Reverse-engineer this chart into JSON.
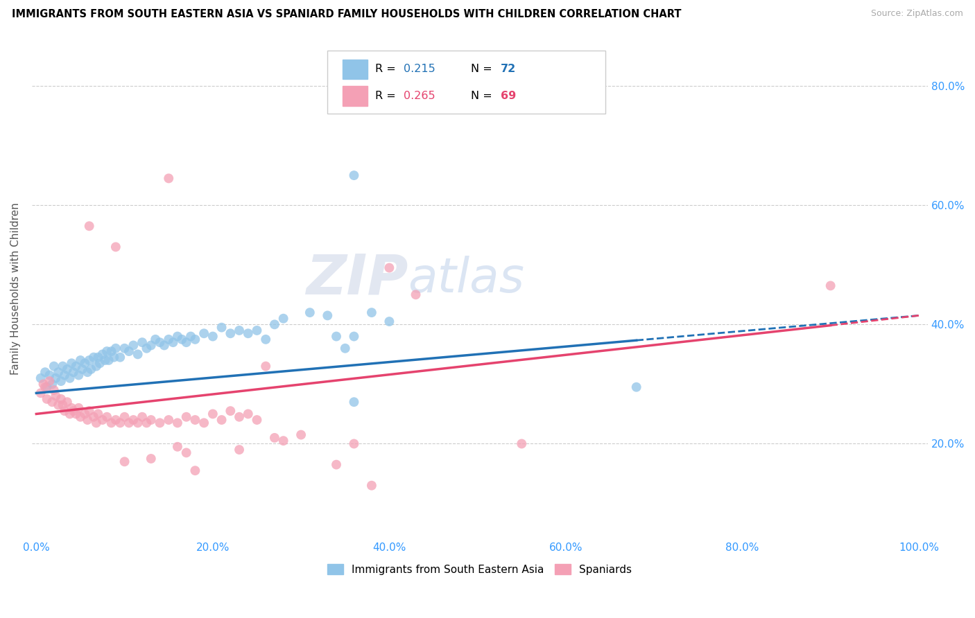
{
  "title": "IMMIGRANTS FROM SOUTH EASTERN ASIA VS SPANIARD FAMILY HOUSEHOLDS WITH CHILDREN CORRELATION CHART",
  "source": "Source: ZipAtlas.com",
  "ylabel": "Family Households with Children",
  "legend_label1": "Immigrants from South Eastern Asia",
  "legend_label2": "Spaniards",
  "r1": 0.215,
  "n1": 72,
  "r2": 0.265,
  "n2": 69,
  "color_blue": "#90c4e8",
  "color_pink": "#f4a0b5",
  "color_blue_line": "#2171b5",
  "color_pink_line": "#e5436e",
  "watermark_zip": "ZIP",
  "watermark_atlas": "atlas",
  "blue_x": [
    0.005,
    0.01,
    0.012,
    0.015,
    0.018,
    0.02,
    0.022,
    0.025,
    0.028,
    0.03,
    0.032,
    0.035,
    0.038,
    0.04,
    0.042,
    0.045,
    0.048,
    0.05,
    0.052,
    0.055,
    0.058,
    0.06,
    0.062,
    0.065,
    0.068,
    0.07,
    0.072,
    0.075,
    0.078,
    0.08,
    0.082,
    0.085,
    0.088,
    0.09,
    0.095,
    0.1,
    0.105,
    0.11,
    0.115,
    0.12,
    0.125,
    0.13,
    0.135,
    0.14,
    0.145,
    0.15,
    0.155,
    0.16,
    0.165,
    0.17,
    0.175,
    0.18,
    0.19,
    0.2,
    0.21,
    0.22,
    0.23,
    0.24,
    0.25,
    0.26,
    0.27,
    0.28,
    0.31,
    0.33,
    0.34,
    0.35,
    0.36,
    0.36,
    0.68,
    0.36,
    0.38,
    0.4
  ],
  "blue_y": [
    0.31,
    0.32,
    0.295,
    0.315,
    0.3,
    0.33,
    0.31,
    0.32,
    0.305,
    0.33,
    0.315,
    0.325,
    0.31,
    0.335,
    0.32,
    0.33,
    0.315,
    0.34,
    0.325,
    0.335,
    0.32,
    0.34,
    0.325,
    0.345,
    0.33,
    0.345,
    0.335,
    0.35,
    0.34,
    0.355,
    0.34,
    0.355,
    0.345,
    0.36,
    0.345,
    0.36,
    0.355,
    0.365,
    0.35,
    0.37,
    0.36,
    0.365,
    0.375,
    0.37,
    0.365,
    0.375,
    0.37,
    0.38,
    0.375,
    0.37,
    0.38,
    0.375,
    0.385,
    0.38,
    0.395,
    0.385,
    0.39,
    0.385,
    0.39,
    0.375,
    0.4,
    0.41,
    0.42,
    0.415,
    0.38,
    0.36,
    0.38,
    0.65,
    0.295,
    0.27,
    0.42,
    0.405
  ],
  "pink_x": [
    0.005,
    0.008,
    0.01,
    0.012,
    0.015,
    0.018,
    0.02,
    0.022,
    0.025,
    0.028,
    0.03,
    0.032,
    0.035,
    0.038,
    0.04,
    0.042,
    0.045,
    0.048,
    0.05,
    0.055,
    0.058,
    0.06,
    0.065,
    0.068,
    0.07,
    0.075,
    0.08,
    0.085,
    0.09,
    0.095,
    0.1,
    0.105,
    0.11,
    0.115,
    0.12,
    0.125,
    0.13,
    0.14,
    0.15,
    0.16,
    0.17,
    0.18,
    0.19,
    0.2,
    0.21,
    0.22,
    0.23,
    0.24,
    0.25,
    0.26,
    0.16,
    0.17,
    0.1,
    0.13,
    0.23,
    0.18,
    0.27,
    0.28,
    0.3,
    0.34,
    0.36,
    0.38,
    0.55,
    0.43,
    0.9,
    0.06,
    0.09,
    0.15,
    0.4
  ],
  "pink_y": [
    0.285,
    0.3,
    0.295,
    0.275,
    0.305,
    0.27,
    0.29,
    0.28,
    0.265,
    0.275,
    0.265,
    0.255,
    0.27,
    0.25,
    0.26,
    0.255,
    0.25,
    0.26,
    0.245,
    0.25,
    0.24,
    0.255,
    0.245,
    0.235,
    0.25,
    0.24,
    0.245,
    0.235,
    0.24,
    0.235,
    0.245,
    0.235,
    0.24,
    0.235,
    0.245,
    0.235,
    0.24,
    0.235,
    0.24,
    0.235,
    0.245,
    0.24,
    0.235,
    0.25,
    0.24,
    0.255,
    0.245,
    0.25,
    0.24,
    0.33,
    0.195,
    0.185,
    0.17,
    0.175,
    0.19,
    0.155,
    0.21,
    0.205,
    0.215,
    0.165,
    0.2,
    0.13,
    0.2,
    0.45,
    0.465,
    0.565,
    0.53,
    0.645,
    0.495
  ]
}
